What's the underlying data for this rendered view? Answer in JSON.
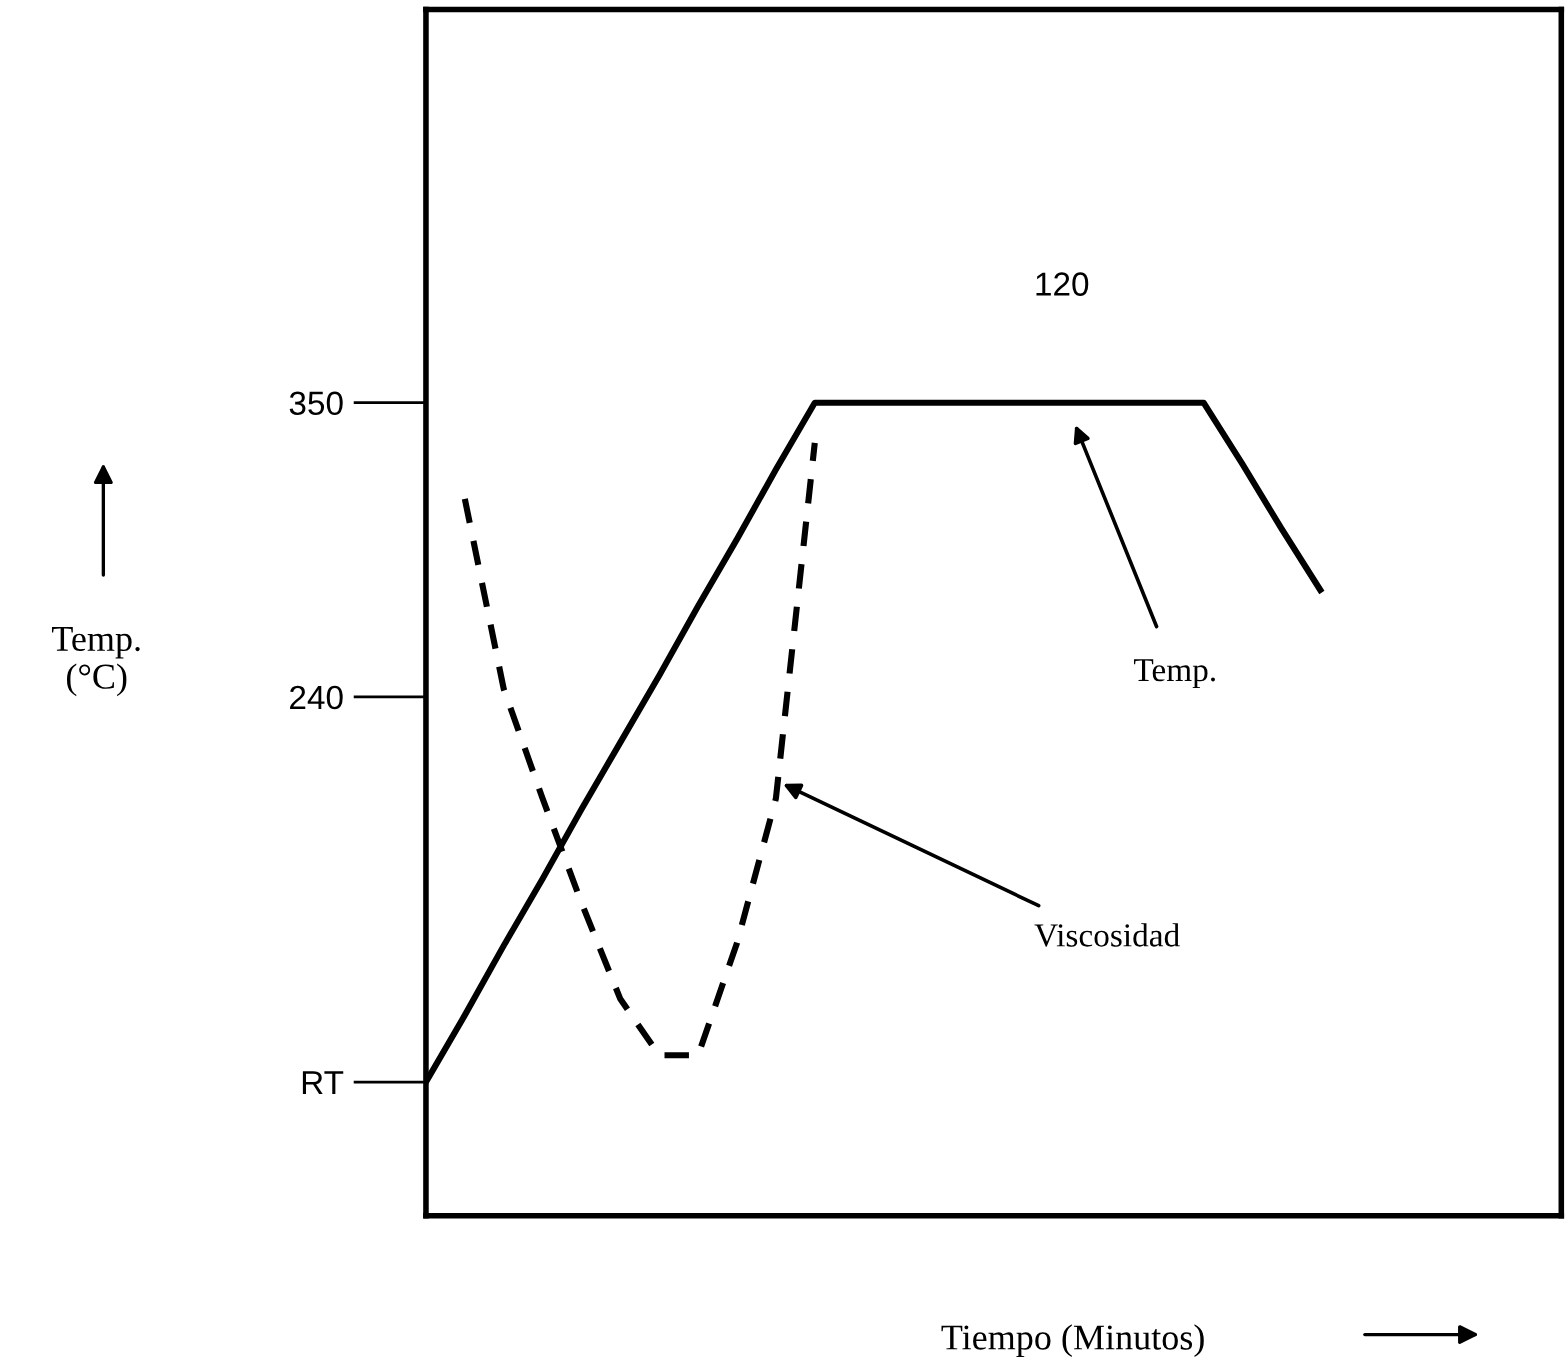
{
  "chart_data": {
    "type": "line",
    "xlabel": "Tiempo (Minutos)",
    "ylabel": "Temp.\n(°C)",
    "categories": [
      null,
      null,
      null,
      null,
      null,
      null,
      null,
      null,
      null,
      null,
      null,
      null,
      null,
      null,
      null,
      null,
      null,
      null,
      null,
      null,
      null,
      null,
      null,
      null,
      null,
      null,
      null,
      null,
      null,
      null
    ],
    "ylim": [
      46,
      497
    ],
    "yticks": [
      {
        "value": 96,
        "label": "RT"
      },
      240,
      350
    ],
    "grid": false,
    "legend": false,
    "series": [
      {
        "color": "#000000",
        "line_style": "solid",
        "values": [
          96,
          121,
          147,
          172,
          198,
          223,
          248,
          274,
          299,
          325,
          350,
          350,
          350,
          350,
          350,
          350,
          350,
          350,
          350,
          350,
          350,
          327,
          303,
          280,
          null,
          null,
          null,
          null,
          null,
          null
        ]
      },
      {
        "color": "#000000",
        "line_style": "dashed",
        "values": [
          null,
          314,
          243,
          202,
          163,
          127,
          106,
          106,
          148,
          202,
          335,
          null,
          null,
          null,
          null,
          null,
          null,
          null,
          null,
          null,
          null,
          null,
          null,
          null,
          null,
          null,
          null,
          null,
          null,
          null
        ]
      }
    ],
    "annotations": [
      "120",
      "Temp.",
      "Viscosidad"
    ]
  }
}
